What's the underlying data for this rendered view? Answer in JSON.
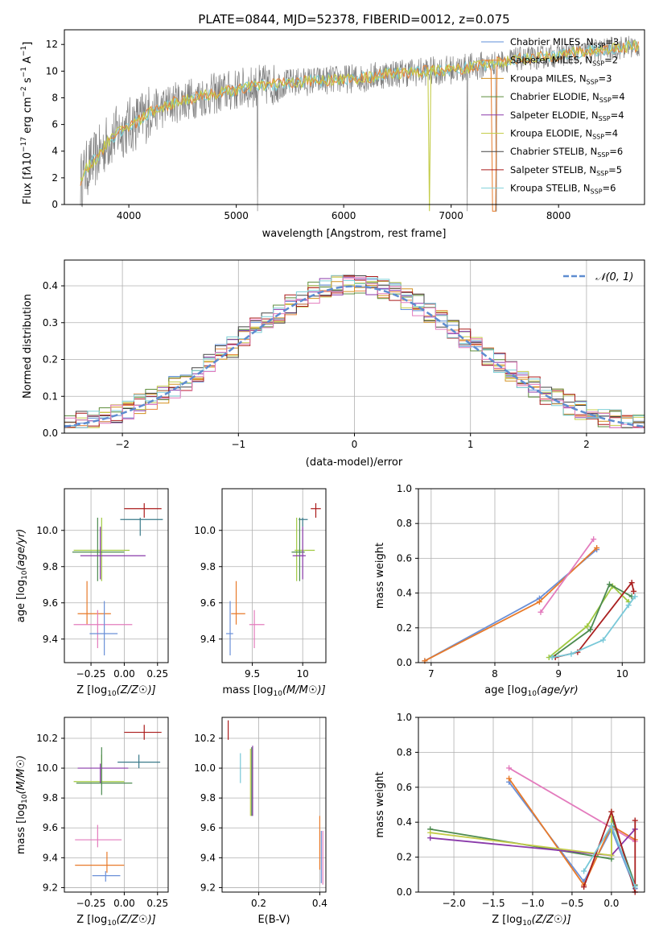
{
  "colors": {
    "spectrum": "#808080",
    "series": [
      "#5f8fd8",
      "#e8853a",
      "#d4901f",
      "#5e8e3c",
      "#8a3aaa",
      "#c4cc4a",
      "#444444",
      "#aa1a1a",
      "#7fd0d8"
    ],
    "marker_series": [
      "#6a90d8",
      "#e87a2a",
      "#e37bbd",
      "#a0c940",
      "#4c8a50",
      "#aa2020",
      "#78c8d8"
    ],
    "normal": "#5e8cd0"
  },
  "chart_data": [
    {
      "id": "spectrum",
      "type": "line",
      "title": "PLATE=0844, MJD=52378, FIBERID=0012, z=0.075",
      "xlabel": "wavelength [Angstrom, rest frame]",
      "ylabel": "Flux [f",
      "xlim": [
        3400,
        8800
      ],
      "ylim": [
        0,
        13.1
      ],
      "xticks": [
        4000,
        5000,
        6000,
        7000,
        8000
      ],
      "yticks": [
        0,
        2,
        4,
        6,
        8,
        10,
        12
      ],
      "grid": false,
      "legend_position": "right",
      "series": [
        {
          "name": "Chabrier MILES, N",
          "sub": "SSP",
          "n": "=3"
        },
        {
          "name": "Salpeter MILES, N",
          "sub": "SSP",
          "n": "=2"
        },
        {
          "name": "Kroupa MILES, N",
          "sub": "SSP",
          "n": "=3"
        },
        {
          "name": "Chabrier ELODIE, N",
          "sub": "SSP",
          "n": "=4"
        },
        {
          "name": "Salpeter ELODIE, N",
          "sub": "SSP",
          "n": "=4"
        },
        {
          "name": "Kroupa ELODIE, N",
          "sub": "SSP",
          "n": "=4"
        },
        {
          "name": "Chabrier STELIB, N",
          "sub": "SSP",
          "n": "=6"
        },
        {
          "name": "Salpeter STELIB, N",
          "sub": "SSP",
          "n": "=5"
        },
        {
          "name": "Kroupa STELIB, N",
          "sub": "SSP",
          "n": "=6"
        }
      ],
      "continuum": {
        "x": [
          3550,
          3600,
          3700,
          3800,
          3900,
          4000,
          4100,
          4200,
          4300,
          4400,
          4500,
          4600,
          4800,
          5000,
          5200,
          5400,
          5600,
          5800,
          6000,
          6200,
          6400,
          6600,
          6800,
          7000,
          7200,
          7400,
          7600,
          7800,
          8000,
          8200,
          8400,
          8600,
          8750
        ],
        "y": [
          1.7,
          2.6,
          3.5,
          4.7,
          5.4,
          5.9,
          6.3,
          7.0,
          7.2,
          7.6,
          7.8,
          8.0,
          8.3,
          8.6,
          8.9,
          9.0,
          9.2,
          9.3,
          9.4,
          9.5,
          9.8,
          9.9,
          10.0,
          10.1,
          10.3,
          10.6,
          10.9,
          11.0,
          11.2,
          11.4,
          11.6,
          11.8,
          11.9
        ]
      }
    },
    {
      "id": "residuals",
      "type": "bar",
      "xlabel": "(data-model)/error",
      "ylabel": "Normed distribution",
      "xlim": [
        -2.5,
        2.5
      ],
      "ylim": [
        0,
        0.47
      ],
      "xticks": [
        -2,
        -1,
        0,
        1,
        2
      ],
      "xticklabels": [
        "−2",
        "−1",
        "0",
        "1",
        "2"
      ],
      "yticks": [
        0.0,
        0.1,
        0.2,
        0.3,
        0.4
      ],
      "grid": true,
      "legend_position": "top-right",
      "legend_label": "𝒩(0, 1)",
      "bin_width": 0.1
    },
    {
      "id": "z-age",
      "type": "scatter",
      "xlabel": "Z [log",
      "ylabel": "age  [log",
      "xlim": [
        -0.45,
        0.33
      ],
      "ylim": [
        9.27,
        10.23
      ],
      "xticks": [
        -0.25,
        0.0,
        0.25
      ],
      "xticklabels": [
        "−0.25",
        "0.00",
        "0.25"
      ],
      "yticks": [
        9.4,
        9.6,
        9.8,
        10.0
      ],
      "grid": true,
      "points": [
        {
          "x": 0.15,
          "y": 10.12,
          "xerr": [
            0.15,
            0.13
          ],
          "yerr": [
            0.05,
            0.03
          ]
        },
        {
          "x": 0.12,
          "y": 10.06,
          "xerr": [
            0.15,
            0.17
          ],
          "yerr": [
            0.09,
            0.01
          ]
        },
        {
          "x": -0.17,
          "y": 9.89,
          "xerr": [
            0.21,
            0.21
          ],
          "yerr": [
            0.17,
            0.18
          ]
        },
        {
          "x": -0.2,
          "y": 9.88,
          "xerr": [
            0.19,
            0.2
          ],
          "yerr": [
            0.16,
            0.19
          ]
        },
        {
          "x": -0.18,
          "y": 9.86,
          "xerr": [
            0.15,
            0.34
          ],
          "yerr": [
            0.13,
            0.16
          ]
        },
        {
          "x": -0.28,
          "y": 9.54,
          "xerr": [
            0.07,
            0.18
          ],
          "yerr": [
            0.06,
            0.18
          ]
        },
        {
          "x": -0.2,
          "y": 9.48,
          "xerr": [
            0.18,
            0.26
          ],
          "yerr": [
            0.13,
            0.08
          ]
        },
        {
          "x": -0.15,
          "y": 9.43,
          "xerr": [
            0.11,
            0.1
          ],
          "yerr": [
            0.12,
            0.18
          ]
        }
      ]
    },
    {
      "id": "mass-age",
      "type": "scatter",
      "xlabel": "mass [log",
      "ylabel": "",
      "xlim": [
        9.2,
        10.23
      ],
      "ylim": [
        9.27,
        10.23
      ],
      "xticks": [
        9.5,
        10.0
      ],
      "yticks": [
        9.4,
        9.6,
        9.8,
        10.0
      ],
      "grid": true,
      "points": [
        {
          "x": 10.13,
          "y": 10.12,
          "xerr": [
            0.05,
            0.05
          ],
          "yerr": [
            0.05,
            0.03
          ]
        },
        {
          "x": 10.0,
          "y": 10.06,
          "xerr": [
            0.04,
            0.05
          ],
          "yerr": [
            0.04,
            0.01
          ]
        },
        {
          "x": 9.94,
          "y": 9.89,
          "xerr": [
            0.02,
            0.18
          ],
          "yerr": [
            0.17,
            0.18
          ]
        },
        {
          "x": 9.97,
          "y": 9.88,
          "xerr": [
            0.08,
            0.05
          ],
          "yerr": [
            0.16,
            0.19
          ]
        },
        {
          "x": 10.0,
          "y": 9.86,
          "xerr": [
            0.1,
            0.03
          ],
          "yerr": [
            0.13,
            0.16
          ]
        },
        {
          "x": 9.34,
          "y": 9.54,
          "xerr": [
            0.05,
            0.09
          ],
          "yerr": [
            0.06,
            0.18
          ]
        },
        {
          "x": 9.52,
          "y": 9.48,
          "xerr": [
            0.05,
            0.1
          ],
          "yerr": [
            0.13,
            0.08
          ]
        },
        {
          "x": 9.28,
          "y": 9.43,
          "xerr": [
            0.04,
            0.03
          ],
          "yerr": [
            0.12,
            0.18
          ]
        }
      ]
    },
    {
      "id": "age-weight",
      "type": "line",
      "xlabel": "age  [log",
      "ylabel": "mass weight",
      "xlim": [
        6.8,
        10.35
      ],
      "ylim": [
        0,
        1.0
      ],
      "xticks": [
        7,
        8,
        9,
        10
      ],
      "yticks": [
        0.0,
        0.2,
        0.4,
        0.6,
        0.8,
        1.0
      ],
      "grid": true,
      "series": [
        {
          "x": [
            6.9,
            8.7,
            9.6
          ],
          "y": [
            0.01,
            0.37,
            0.65
          ]
        },
        {
          "x": [
            6.9,
            8.7,
            9.6
          ],
          "y": [
            0.01,
            0.35,
            0.66
          ]
        },
        {
          "x": [
            8.72,
            9.55
          ],
          "y": [
            0.29,
            0.71
          ]
        },
        {
          "x": [
            8.85,
            9.45,
            9.85,
            10.1
          ],
          "y": [
            0.03,
            0.21,
            0.44,
            0.35
          ]
        },
        {
          "x": [
            8.9,
            9.5,
            9.8,
            10.15
          ],
          "y": [
            0.03,
            0.19,
            0.45,
            0.38
          ]
        },
        {
          "x": [
            8.95,
            9.3,
            10.15,
            10.18
          ],
          "y": [
            0.03,
            0.06,
            0.46,
            0.41
          ]
        },
        {
          "x": [
            8.9,
            9.2,
            9.7,
            10.1,
            10.2
          ],
          "y": [
            0.03,
            0.05,
            0.13,
            0.33,
            0.38
          ]
        }
      ]
    },
    {
      "id": "z-mass",
      "type": "scatter",
      "xlabel": "Z [log",
      "ylabel": "mass [log",
      "xlim": [
        -0.45,
        0.33
      ],
      "ylim": [
        9.17,
        10.34
      ],
      "xticks": [
        -0.25,
        0.0,
        0.25
      ],
      "xticklabels": [
        "−0.25",
        "0.00",
        "0.25"
      ],
      "yticks": [
        9.2,
        9.4,
        9.6,
        9.8,
        10.0,
        10.2
      ],
      "grid": true,
      "points": [
        {
          "x": 0.15,
          "y": 10.24,
          "xerr": [
            0.15,
            0.13
          ],
          "yerr": [
            0.05,
            0.05
          ]
        },
        {
          "x": 0.11,
          "y": 10.04,
          "xerr": [
            0.16,
            0.16
          ],
          "yerr": [
            0.04,
            0.05
          ]
        },
        {
          "x": -0.17,
          "y": 9.91,
          "xerr": [
            0.21,
            0.17
          ],
          "yerr": [
            0.02,
            0.18
          ]
        },
        {
          "x": -0.17,
          "y": 9.9,
          "xerr": [
            0.19,
            0.23
          ],
          "yerr": [
            0.08,
            0.24
          ]
        },
        {
          "x": -0.18,
          "y": 10.0,
          "xerr": [
            0.17,
            0.21
          ],
          "yerr": [
            0.1,
            0.03
          ]
        },
        {
          "x": -0.13,
          "y": 9.35,
          "xerr": [
            0.24,
            0.13
          ],
          "yerr": [
            0.05,
            0.09
          ]
        },
        {
          "x": -0.2,
          "y": 9.52,
          "xerr": [
            0.17,
            0.18
          ],
          "yerr": [
            0.05,
            0.1
          ]
        },
        {
          "x": -0.14,
          "y": 9.28,
          "xerr": [
            0.1,
            0.11
          ],
          "yerr": [
            0.04,
            0.03
          ]
        }
      ]
    },
    {
      "id": "ebv-mass",
      "type": "scatter",
      "xlabel": "E(B-V)",
      "ylabel": "",
      "xlim": [
        0.08,
        0.42
      ],
      "ylim": [
        9.17,
        10.34
      ],
      "xticks": [
        0.2,
        0.4
      ],
      "yticks": [
        9.2,
        9.4,
        9.6,
        9.8,
        10.0,
        10.2
      ],
      "grid": true,
      "points": [
        {
          "x": 0.1,
          "y": 10.25,
          "yerr": [
            0.06,
            0.07
          ]
        },
        {
          "x": 0.14,
          "y": 10.04,
          "yerr": [
            0.14,
            0.06
          ]
        },
        {
          "x": 0.173,
          "y": 9.9,
          "yerr": [
            0.22,
            0.23
          ]
        },
        {
          "x": 0.177,
          "y": 9.9,
          "yerr": [
            0.22,
            0.24
          ]
        },
        {
          "x": 0.18,
          "y": 9.92,
          "yerr": [
            0.24,
            0.23
          ]
        },
        {
          "x": 0.4,
          "y": 9.4,
          "yerr": [
            0.08,
            0.28
          ]
        },
        {
          "x": 0.405,
          "y": 9.35,
          "yerr": [
            0.12,
            0.23
          ]
        },
        {
          "x": 0.41,
          "y": 9.38,
          "yerr": [
            0.16,
            0.2
          ]
        }
      ]
    },
    {
      "id": "z-weight",
      "type": "line",
      "xlabel": "Z [log",
      "ylabel": "mass weight",
      "xlim": [
        -2.45,
        0.42
      ],
      "ylim": [
        0,
        1.0
      ],
      "xticks": [
        -2.0,
        -1.5,
        -1.0,
        -0.5,
        0.0
      ],
      "xticklabels": [
        "−2.0",
        "−1.5",
        "−1.0",
        "−0.5",
        "0.0"
      ],
      "yticks": [
        0.0,
        0.2,
        0.4,
        0.6,
        0.8,
        1.0
      ],
      "grid": true,
      "series": [
        {
          "x": [
            -1.3,
            -0.35,
            0.0,
            0.3
          ],
          "y": [
            0.63,
            0.06,
            0.36,
            0.02
          ]
        },
        {
          "x": [
            -1.3,
            -0.35,
            0.0,
            0.3
          ],
          "y": [
            0.65,
            0.04,
            0.38,
            0.3
          ]
        },
        {
          "x": [
            -1.3,
            0.3
          ],
          "y": [
            0.71,
            0.29
          ]
        },
        {
          "x": [
            -2.3,
            -0.0,
            0.0,
            0.3
          ],
          "y": [
            0.36,
            0.19,
            0.43,
            0.04
          ]
        },
        {
          "x": [
            -2.3,
            0.0,
            0.3
          ],
          "y": [
            0.31,
            0.21,
            0.36
          ]
        },
        {
          "x": [
            -2.3,
            0.0,
            0.0
          ],
          "y": [
            0.34,
            0.21,
            0.46
          ]
        },
        {
          "x": [
            -0.35,
            0.0,
            0.3,
            0.3
          ],
          "y": [
            0.03,
            0.46,
            0.0,
            0.41
          ]
        },
        {
          "x": [
            -0.35,
            0.0,
            0.3
          ],
          "y": [
            0.12,
            0.38,
            0.03
          ]
        }
      ]
    }
  ]
}
